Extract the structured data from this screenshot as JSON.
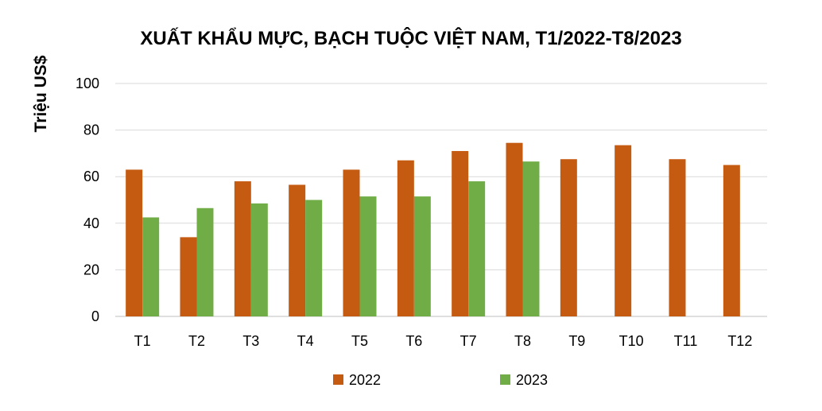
{
  "chart_data": {
    "type": "bar",
    "title": "XUẤT KHẨU MỰC, BẠCH TUỘC VIỆT NAM, T1/2022-T8/2023",
    "xlabel": "",
    "ylabel": "Triệu US$",
    "ylim": [
      0,
      100
    ],
    "yticks": [
      0,
      20,
      40,
      60,
      80,
      100
    ],
    "grid": true,
    "legend_position": "bottom",
    "categories": [
      "T1",
      "T2",
      "T3",
      "T4",
      "T5",
      "T6",
      "T7",
      "T8",
      "T9",
      "T10",
      "T11",
      "T12"
    ],
    "series": [
      {
        "name": "2022",
        "color": "#C55A11",
        "values": [
          63,
          34,
          58,
          56.5,
          63,
          67,
          71,
          74.5,
          67.5,
          73.5,
          67.5,
          65
        ]
      },
      {
        "name": "2023",
        "color": "#70AD47",
        "values": [
          42.5,
          46.5,
          48.5,
          50,
          51.5,
          51.5,
          58,
          66.5,
          null,
          null,
          null,
          null
        ]
      }
    ]
  }
}
